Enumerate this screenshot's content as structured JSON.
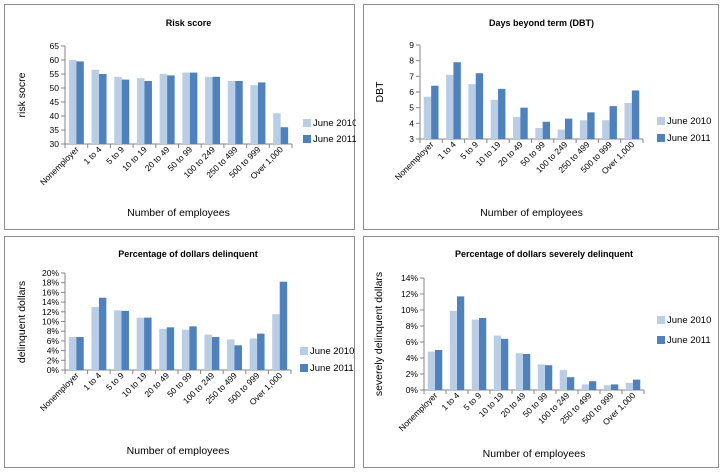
{
  "colors": {
    "june2010": "#b9cde5",
    "june2011": "#4f81bd",
    "axis": "#868686"
  },
  "chart_data": [
    {
      "type": "bar",
      "title": "Risk score",
      "xlabel": "Number of employees",
      "ylabel": "risk socre",
      "categories": [
        "Nonemployer",
        "1 to 4",
        "5 to 9",
        "10 to 19",
        "20 to 49",
        "50 to 99",
        "100 to 249",
        "250 to 499",
        "500 to 999",
        "Over 1,000"
      ],
      "series": [
        {
          "name": "June 2010",
          "values": [
            60,
            56.5,
            54,
            53.5,
            55,
            55.5,
            54,
            52.5,
            51,
            41
          ]
        },
        {
          "name": "June 2011",
          "values": [
            59.5,
            55,
            53,
            52.5,
            54.5,
            55.5,
            54,
            52.5,
            52,
            36
          ]
        }
      ],
      "ylim": [
        30,
        65
      ],
      "yticks": [
        "30",
        "35",
        "40",
        "45",
        "50",
        "55",
        "60",
        "65"
      ],
      "legend": "right"
    },
    {
      "type": "bar",
      "title": "Days beyond term (DBT)",
      "xlabel": "Number of employees",
      "ylabel": "DBT",
      "categories": [
        "Nonemployer",
        "1 to 4",
        "5 to 9",
        "10 to 19",
        "20 to 49",
        "50 to 99",
        "100 to 249",
        "250 to 499",
        "500 to 999",
        "Over 1,000"
      ],
      "series": [
        {
          "name": "June 2010",
          "values": [
            5.7,
            7.1,
            6.5,
            5.5,
            4.4,
            3.7,
            3.6,
            4.2,
            4.2,
            5.3
          ]
        },
        {
          "name": "June 2011",
          "values": [
            6.4,
            7.9,
            7.2,
            6.2,
            5.0,
            4.1,
            4.3,
            4.7,
            5.1,
            6.1
          ]
        }
      ],
      "ylim": [
        3,
        9
      ],
      "yticks": [
        "3",
        "4",
        "5",
        "6",
        "7",
        "8",
        "9"
      ],
      "legend": "right"
    },
    {
      "type": "bar",
      "title": "Percentage of dollars delinquent",
      "xlabel": "Number of employees",
      "ylabel": "delinquent dollars",
      "categories": [
        "Nonemployer",
        "1 to 4",
        "5 to 9",
        "10 to 19",
        "20 to 49",
        "50 to 99",
        "100 to 249",
        "250 to 499",
        "500 to 999",
        "Over 1,000"
      ],
      "series": [
        {
          "name": "June 2010",
          "values": [
            6.8,
            13.0,
            12.3,
            10.8,
            8.5,
            8.3,
            7.3,
            6.3,
            6.5,
            11.5
          ]
        },
        {
          "name": "June 2011",
          "values": [
            6.8,
            14.9,
            12.2,
            10.8,
            8.8,
            9.0,
            6.8,
            5.1,
            7.5,
            18.2
          ]
        }
      ],
      "ylim": [
        0,
        20
      ],
      "yticks": [
        "0%",
        "2%",
        "4%",
        "6%",
        "8%",
        "10%",
        "12%",
        "14%",
        "16%",
        "18%",
        "20%"
      ],
      "legend": "right"
    },
    {
      "type": "bar",
      "title": "Percentage of dollars severely delinquent",
      "xlabel": "Number of employees",
      "ylabel": "severely delinquent dollars",
      "categories": [
        "Nonemployer",
        "1 to 4",
        "5 to 9",
        "10 to 19",
        "20 to 49",
        "50 to 99",
        "100 to 249",
        "250 to 499",
        "500 to 999",
        "Over 1,000"
      ],
      "series": [
        {
          "name": "June 2010",
          "values": [
            4.8,
            9.9,
            8.8,
            6.8,
            4.6,
            3.2,
            2.5,
            0.7,
            0.6,
            0.9
          ]
        },
        {
          "name": "June 2011",
          "values": [
            5.0,
            11.7,
            9.0,
            6.4,
            4.5,
            3.1,
            1.6,
            1.1,
            0.7,
            1.3
          ]
        }
      ],
      "ylim": [
        0,
        14
      ],
      "yticks": [
        "0%",
        "2%",
        "4%",
        "6%",
        "8%",
        "10%",
        "12%",
        "14%"
      ],
      "legend": "right"
    }
  ]
}
